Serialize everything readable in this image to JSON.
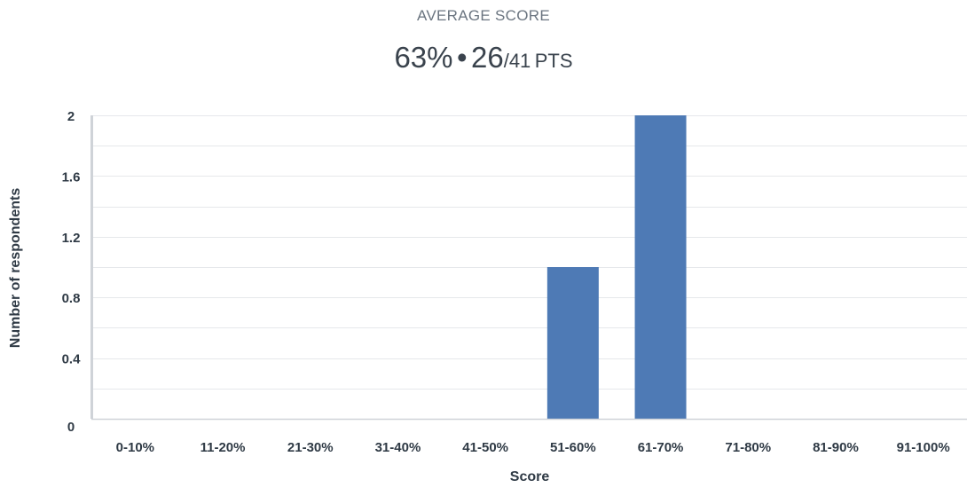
{
  "summary": {
    "caption": "AVERAGE SCORE",
    "percent": "63%",
    "separator": "•",
    "points": "26",
    "total": "/41",
    "unit": "PTS"
  },
  "chart_data": {
    "type": "bar",
    "title": "",
    "xlabel": "Score",
    "ylabel": "Number of respondents",
    "categories": [
      "0-10%",
      "11-20%",
      "21-30%",
      "31-40%",
      "41-50%",
      "51-60%",
      "61-70%",
      "71-80%",
      "81-90%",
      "91-100%"
    ],
    "values": [
      0,
      0,
      0,
      0,
      0,
      1,
      2,
      0,
      0,
      0
    ],
    "ylim": [
      0,
      2
    ],
    "yticks": [
      0,
      0.4,
      0.8,
      1.2,
      1.6,
      2
    ],
    "yticklabels": [
      "0",
      "0.4",
      "0.8",
      "1.2",
      "1.6",
      "2"
    ],
    "grid": true,
    "colors": {
      "bar": "#4e7ab5",
      "grid": "#e6e8eb",
      "axis": "#cfd3d8",
      "text": "#2f3a45"
    }
  }
}
